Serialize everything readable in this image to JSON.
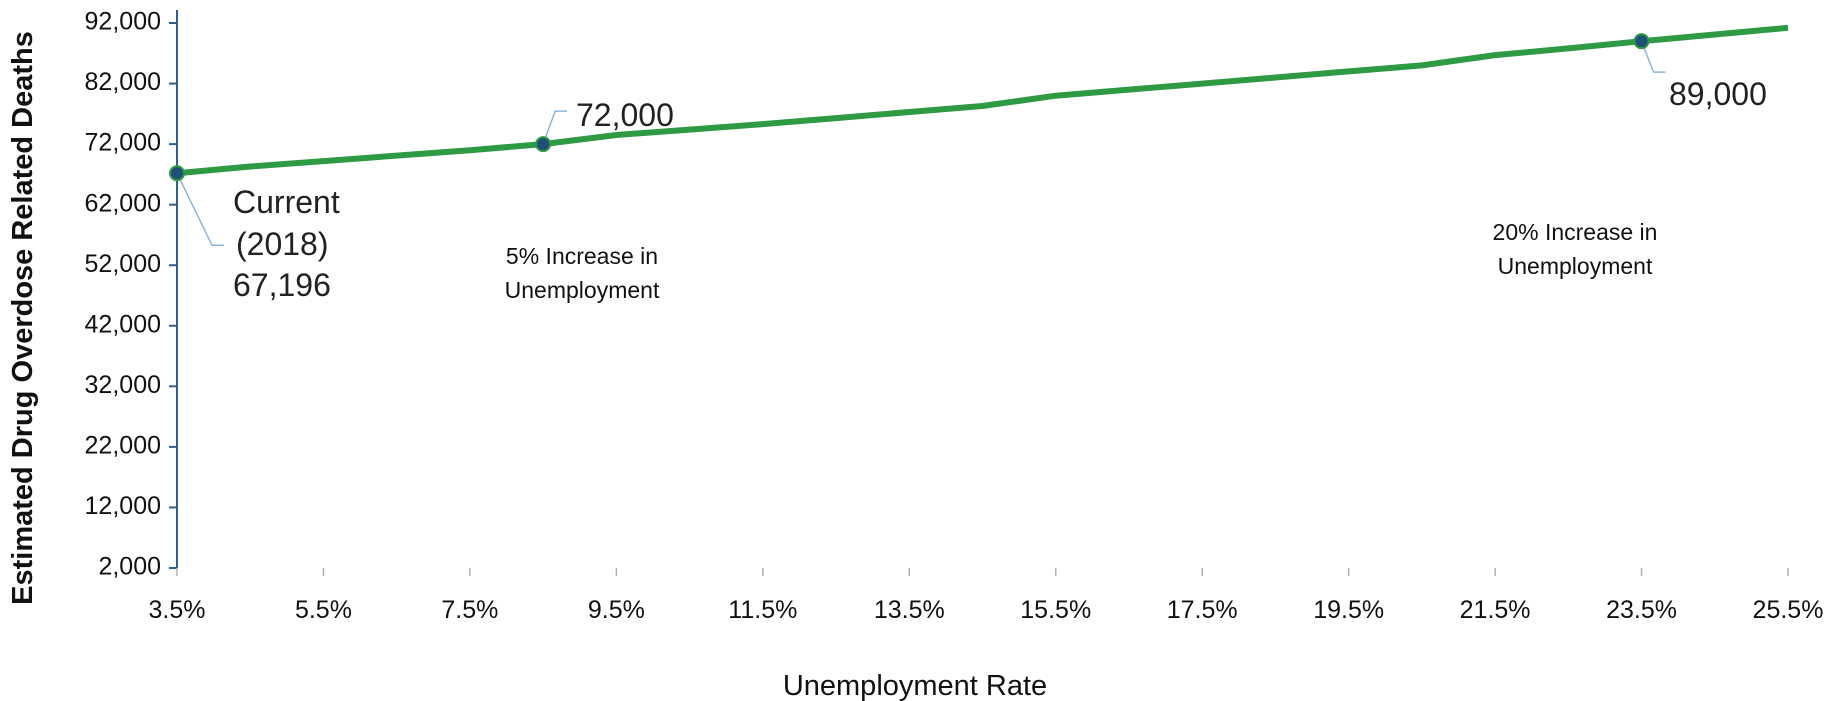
{
  "chart_data": {
    "type": "line",
    "title": "",
    "xlabel": "Unemployment Rate",
    "ylabel": "Estimated Drug Overdose Related Deaths",
    "xlim": [
      3.5,
      25.5
    ],
    "ylim": [
      2000,
      92000
    ],
    "x_ticks": [
      "3.5%",
      "5.5%",
      "7.5%",
      "9.5%",
      "11.5%",
      "13.5%",
      "15.5%",
      "17.5%",
      "19.5%",
      "21.5%",
      "23.5%",
      "25.5%"
    ],
    "y_ticks": [
      "2,000",
      "12,000",
      "22,000",
      "32,000",
      "42,000",
      "52,000",
      "62,000",
      "72,000",
      "82,000",
      "92,000"
    ],
    "grid": false,
    "line_color": "#2e9a44",
    "marker_color": "#1f4e79",
    "series": [
      {
        "x": [
          3.5,
          4.5,
          5.5,
          6.5,
          7.5,
          8.5,
          9.5,
          10.5,
          11.5,
          12.5,
          13.5,
          14.5,
          15.5,
          16.5,
          17.5,
          18.5,
          19.5,
          20.5,
          21.5,
          22.5,
          23.5,
          24.5,
          25.5
        ],
        "y": [
          67196,
          68300,
          69200,
          70100,
          71000,
          72000,
          73500,
          74400,
          75300,
          76300,
          77300,
          78300,
          80000,
          81000,
          82000,
          83000,
          84000,
          85000,
          86700,
          87800,
          89000,
          90100,
          91200
        ]
      }
    ],
    "markers": [
      {
        "x": 3.5,
        "y": 67196
      },
      {
        "x": 8.5,
        "y": 72000
      },
      {
        "x": 23.5,
        "y": 89000
      }
    ],
    "annotations": {
      "current": [
        "Current",
        "(2018)",
        "67,196"
      ],
      "five_pct_value": "72,000",
      "five_pct_label": [
        "5% Increase in",
        "Unemployment"
      ],
      "twenty_pct_value": "89,000",
      "twenty_pct_label": [
        "20% Increase in",
        "Unemployment"
      ]
    }
  }
}
